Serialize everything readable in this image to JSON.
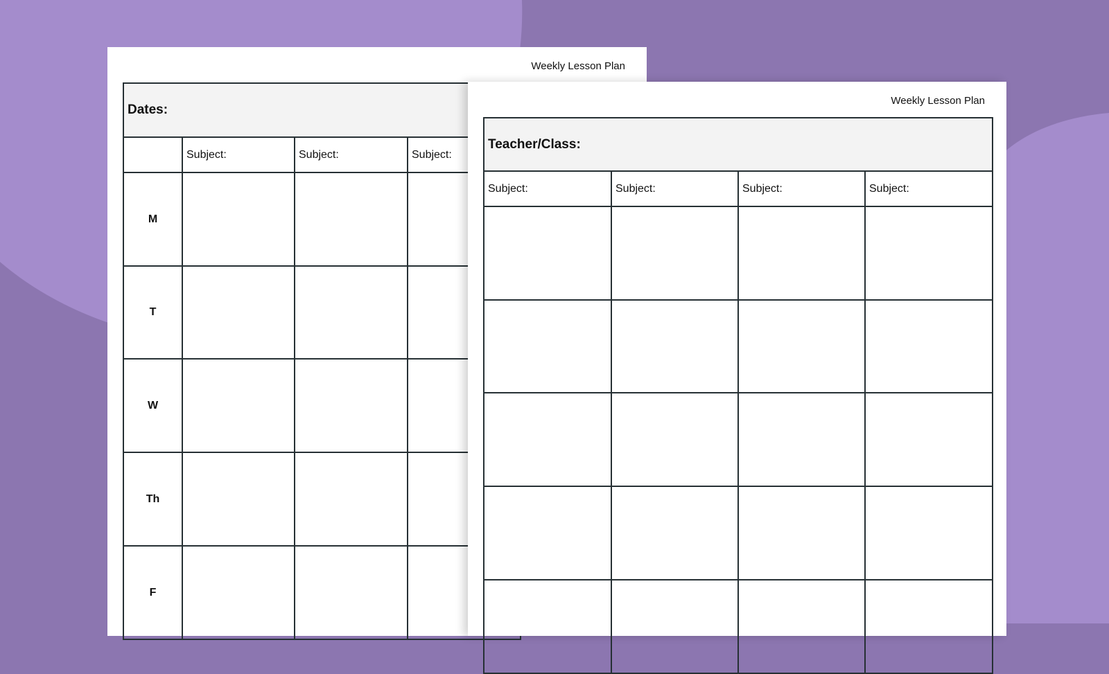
{
  "colors": {
    "background_dark": "#8c76b0",
    "background_light": "#a48ccc",
    "header_fill": "#f3f3f3",
    "grid_line": "#263034"
  },
  "left_page": {
    "title": "Weekly Lesson Plan",
    "header_label": "Dates:",
    "subjects": [
      "Subject:",
      "Subject:",
      "Subject:"
    ],
    "days": [
      "M",
      "T",
      "W",
      "Th",
      "F"
    ]
  },
  "right_page": {
    "title": "Weekly Lesson Plan",
    "header_label": "Teacher/Class:",
    "subjects": [
      "Subject:",
      "Subject:",
      "Subject:",
      "Subject:"
    ]
  }
}
